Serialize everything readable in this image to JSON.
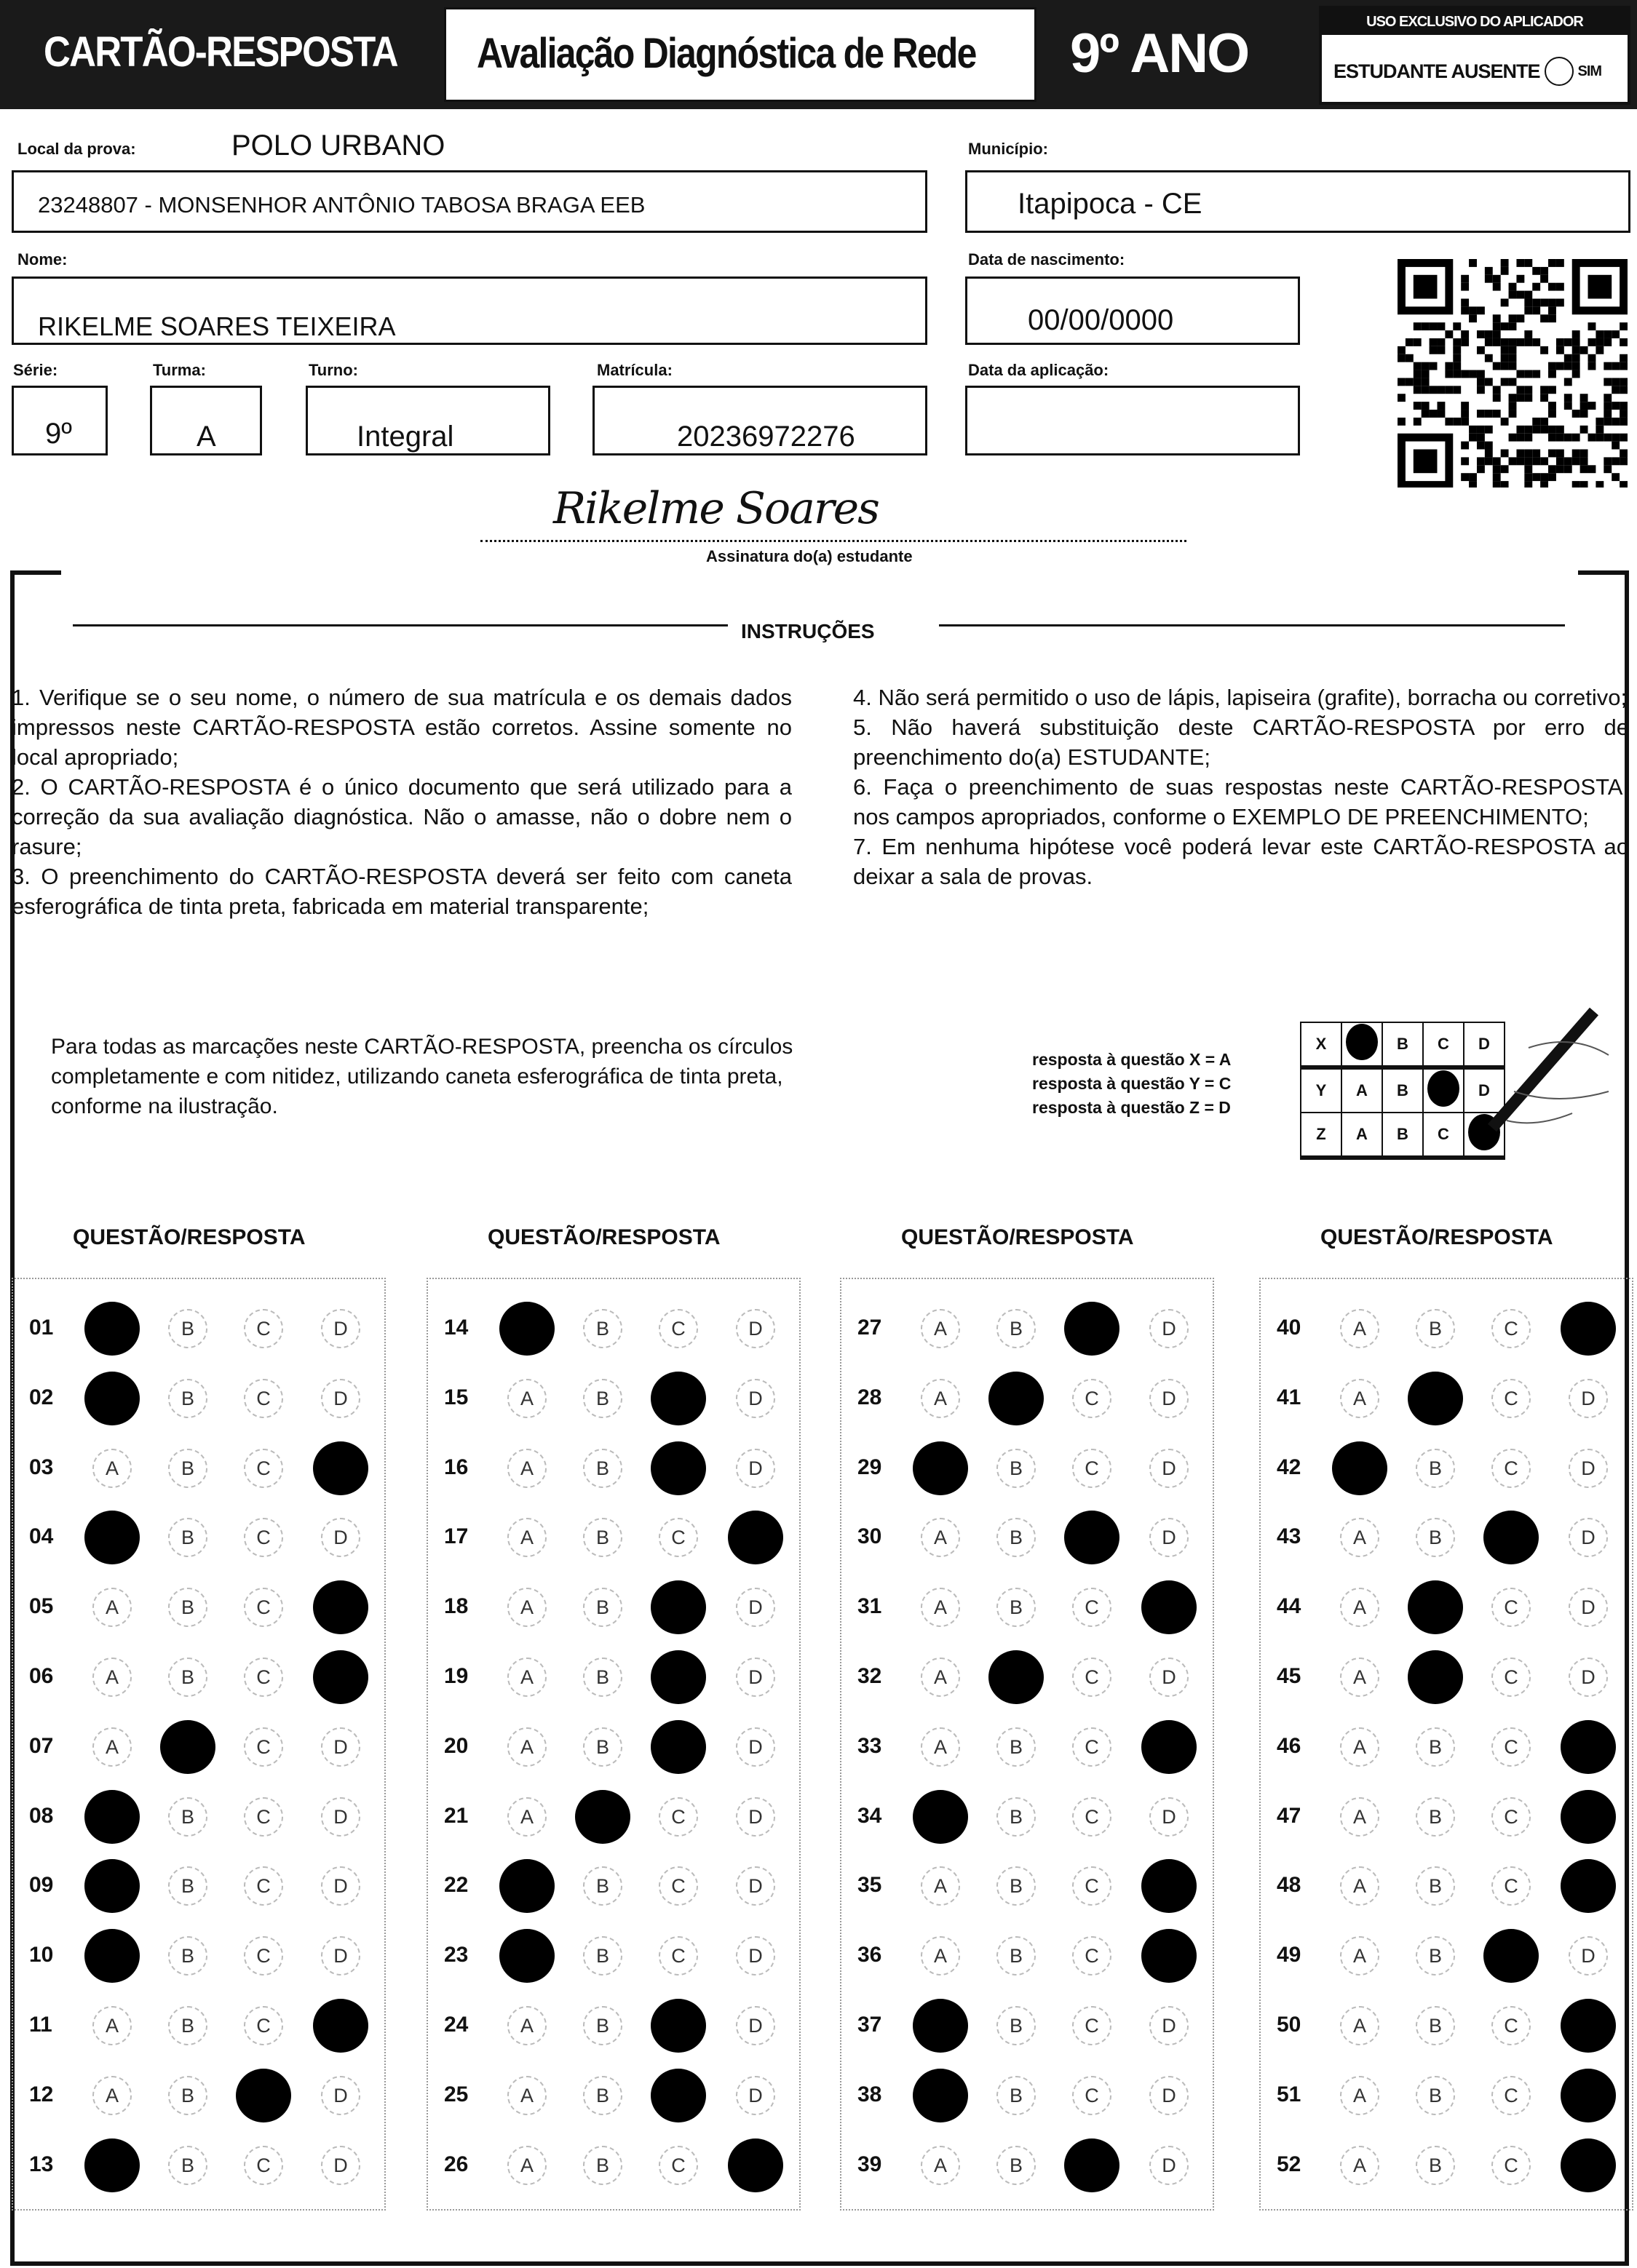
{
  "header": {
    "title": "CARTÃO-RESPOSTA",
    "subtitle": "Avaliação Diagnóstica de Rede",
    "grade": "9º ANO",
    "applicator": {
      "title": "USO EXCLUSIVO DO APLICADOR",
      "absent_label": "ESTUDANTE AUSENTE",
      "yes_label": "SIM"
    }
  },
  "fields": {
    "local_label": "Local da prova:",
    "local_value": "POLO URBANO",
    "school": "23248807 - MONSENHOR ANTÔNIO TABOSA BRAGA EEB",
    "municipio_label": "Município:",
    "municipio_value": "Itapipoca - CE",
    "nome_label": "Nome:",
    "nome_value": "RIKELME SOARES TEIXEIRA",
    "nascimento_label": "Data de nascimento:",
    "nascimento_value": "00/00/0000",
    "serie_label": "Série:",
    "serie_value": "9º",
    "turma_label": "Turma:",
    "turma_value": "A",
    "turno_label": "Turno:",
    "turno_value": "Integral",
    "matricula_label": "Matrícula:",
    "matricula_value": "20236972276",
    "aplicacao_label": "Data da aplicação:",
    "aplicacao_value": ""
  },
  "signature": {
    "handwritten": "Rikelme Soares",
    "caption": "Assinatura do(a) estudante"
  },
  "instructions": {
    "title": "INSTRUÇÕES",
    "left": [
      "1. Verifique se o seu nome, o número de sua matrícula e os demais dados impressos neste CARTÃO-RESPOSTA estão corretos. Assine somente no local apropriado;",
      "2. O CARTÃO-RESPOSTA é o único documento que será utilizado para a correção da sua avaliação diagnóstica. Não o amasse, não o dobre nem o rasure;",
      "3. O preenchimento do CARTÃO-RESPOSTA deverá ser feito com caneta esferográfica de tinta preta, fabricada em material transparente;"
    ],
    "right": [
      "4. Não será permitido o uso de lápis, lapiseira (grafite), borracha ou corretivo;",
      "5. Não haverá substituição deste CARTÃO-RESPOSTA por erro de preenchimento do(a) ESTUDANTE;",
      "6. Faça o preenchimento de suas respostas neste CARTÃO-RESPOSTA, nos campos apropriados, conforme o EXEMPLO DE PREENCHIMENTO;",
      "7. Em nenhuma hipótese você poderá levar este CARTÃO-RESPOSTA ao deixar a sala de provas."
    ]
  },
  "example": {
    "text": "Para todas as marcações neste CARTÃO-RESPOSTA, preencha os círculos completamente e com nitidez, utilizando caneta esferográfica de tinta preta, conforme na ilustração.",
    "legend": [
      "resposta à questão X = A",
      "resposta à questão Y = C",
      "resposta à questão Z = D"
    ],
    "rows": [
      {
        "q": "X",
        "mark": "A"
      },
      {
        "q": "Y",
        "mark": "C"
      },
      {
        "q": "Z",
        "mark": "D"
      }
    ]
  },
  "answers": {
    "column_header": "QUESTÃO/RESPOSTA",
    "options": [
      "A",
      "B",
      "C",
      "D"
    ],
    "marked": [
      [
        "01",
        "A"
      ],
      [
        "02",
        "A"
      ],
      [
        "03",
        "D"
      ],
      [
        "04",
        "A"
      ],
      [
        "05",
        "D"
      ],
      [
        "06",
        "D"
      ],
      [
        "07",
        "B"
      ],
      [
        "08",
        "A"
      ],
      [
        "09",
        "A"
      ],
      [
        "10",
        "A"
      ],
      [
        "11",
        "D"
      ],
      [
        "12",
        "C"
      ],
      [
        "13",
        "A"
      ],
      [
        "14",
        "A"
      ],
      [
        "15",
        "C"
      ],
      [
        "16",
        "C"
      ],
      [
        "17",
        "D"
      ],
      [
        "18",
        "C"
      ],
      [
        "19",
        "C"
      ],
      [
        "20",
        "C"
      ],
      [
        "21",
        "B"
      ],
      [
        "22",
        "A"
      ],
      [
        "23",
        "A"
      ],
      [
        "24",
        "C"
      ],
      [
        "25",
        "C"
      ],
      [
        "26",
        "D"
      ],
      [
        "27",
        "C"
      ],
      [
        "28",
        "B"
      ],
      [
        "29",
        "A"
      ],
      [
        "30",
        "C"
      ],
      [
        "31",
        "D"
      ],
      [
        "32",
        "B"
      ],
      [
        "33",
        "D"
      ],
      [
        "34",
        "A"
      ],
      [
        "35",
        "D"
      ],
      [
        "36",
        "D"
      ],
      [
        "37",
        "A"
      ],
      [
        "38",
        "A"
      ],
      [
        "39",
        "C"
      ],
      [
        "40",
        "D"
      ],
      [
        "41",
        "B"
      ],
      [
        "42",
        "A"
      ],
      [
        "43",
        "C"
      ],
      [
        "44",
        "B"
      ],
      [
        "45",
        "B"
      ],
      [
        "46",
        "D"
      ],
      [
        "47",
        "D"
      ],
      [
        "48",
        "D"
      ],
      [
        "49",
        "C"
      ],
      [
        "50",
        "D"
      ],
      [
        "51",
        "D"
      ],
      [
        "52",
        "D"
      ]
    ]
  }
}
